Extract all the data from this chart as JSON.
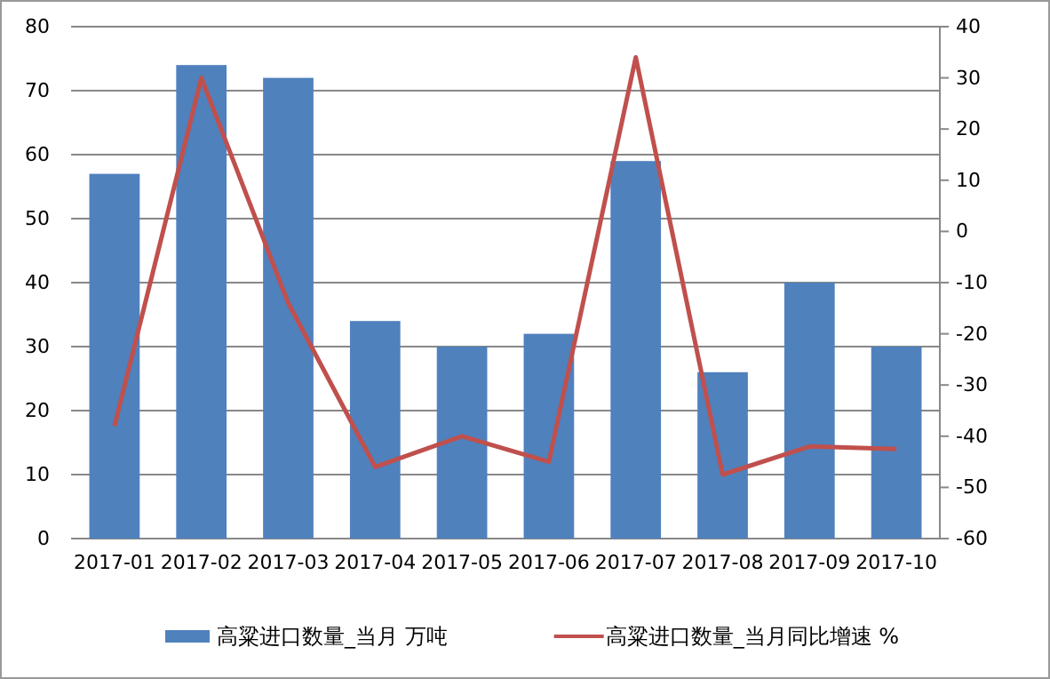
{
  "chart_data": {
    "type": "bar",
    "categories": [
      "2017-01",
      "2017-02",
      "2017-03",
      "2017-04",
      "2017-05",
      "2017-06",
      "2017-07",
      "2017-08",
      "2017-09",
      "2017-10"
    ],
    "series": [
      {
        "name": "高粱进口数量_当月 万吨",
        "color": "#4f81bd",
        "values": [
          57,
          74,
          72,
          34,
          30,
          32,
          59,
          26,
          40,
          30
        ]
      },
      {
        "name": "高粱进口数量_当月同比增速 %",
        "type": "line",
        "axis": "y2",
        "color": "#c0504d",
        "values": [
          -38,
          30,
          -14,
          -46,
          -40,
          -45,
          34,
          -47.5,
          -42,
          -42.5
        ]
      }
    ],
    "ylim": [
      0,
      80
    ],
    "yticks": [
      0,
      10,
      20,
      30,
      40,
      50,
      60,
      70,
      80
    ],
    "y2lim": [
      -60,
      40
    ],
    "y2ticks": [
      -60,
      -50,
      -40,
      -30,
      -20,
      -10,
      0,
      10,
      20,
      30,
      40
    ],
    "grid": "y",
    "legend": "bottom",
    "marker": "none",
    "line_style": "solid"
  }
}
